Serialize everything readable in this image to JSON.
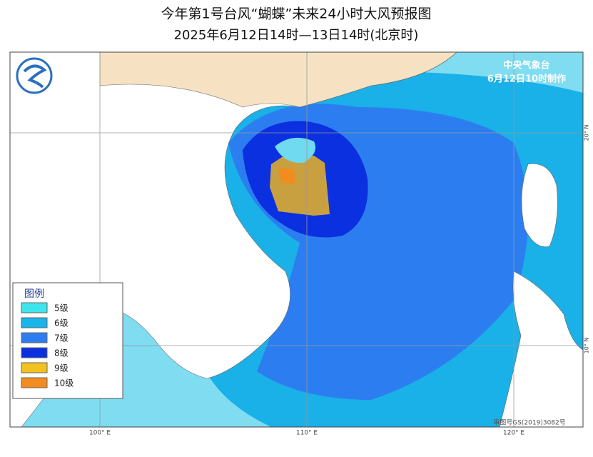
{
  "header": {
    "title": "今年第1号台风“蝴蝶”未来24小时大风预报图",
    "subtitle": "2025年6月12日14时—13日14时(北京时)"
  },
  "agency": {
    "name": "中央气象台",
    "issued": "6月12日10时制作"
  },
  "legend": {
    "title": "图例",
    "items": [
      {
        "label": "5级",
        "color": "#3ce6ec"
      },
      {
        "label": "6级",
        "color": "#18b4ea"
      },
      {
        "label": "7级",
        "color": "#2c7ef0"
      },
      {
        "label": "8级",
        "color": "#0b30e0"
      },
      {
        "label": "9级",
        "color": "#f2c21e"
      },
      {
        "label": "10级",
        "color": "#f28c1e"
      }
    ]
  },
  "grid": {
    "lon": [
      "100° E",
      "110° E",
      "120° E"
    ],
    "lat": [
      "20° N",
      "10° N"
    ]
  },
  "footer": "审图号GS(2019)3082号"
}
